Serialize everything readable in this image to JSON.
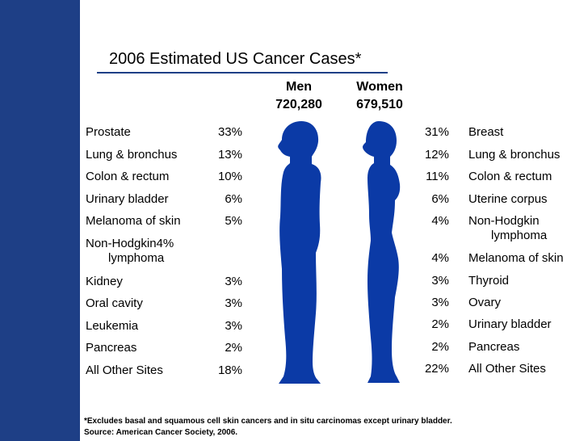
{
  "title": "2006 Estimated US Cancer Cases*",
  "colors": {
    "accent": "#1e3f86",
    "figure": "#0b3aa6"
  },
  "chart_data": {
    "type": "table",
    "columns": [
      "Men",
      "Women"
    ],
    "totals": {
      "men": "720,280",
      "women": "679,510"
    },
    "men": [
      {
        "site": "Prostate",
        "pct": "33%"
      },
      {
        "site": "Lung & bronchus",
        "pct": "13%"
      },
      {
        "site": "Colon & rectum",
        "pct": "10%"
      },
      {
        "site": "Urinary bladder",
        "pct": "6%"
      },
      {
        "site": "Melanoma of skin",
        "pct": "5%"
      },
      {
        "site": "Non-Hodgkin4%",
        "site2": "lymphoma",
        "pct": ""
      },
      {
        "site": "Kidney",
        "pct": "3%"
      },
      {
        "site": "Oral cavity",
        "pct": "3%"
      },
      {
        "site": "Leukemia",
        "pct": "3%"
      },
      {
        "site": "Pancreas",
        "pct": "2%"
      },
      {
        "site": "All Other Sites",
        "pct": "18%"
      }
    ],
    "women": [
      {
        "site": "Breast",
        "pct": "31%"
      },
      {
        "site": "Lung & bronchus",
        "pct": "12%"
      },
      {
        "site": "Colon & rectum",
        "pct": "11%"
      },
      {
        "site": "Uterine corpus",
        "pct": "6%"
      },
      {
        "site": "Non-Hodgkin",
        "site2": "lymphoma",
        "pct": "4%"
      },
      {
        "site": "Melanoma of skin",
        "pct": "4%"
      },
      {
        "site": "Thyroid",
        "pct": "3%"
      },
      {
        "site": "Ovary",
        "pct": "3%"
      },
      {
        "site": "Urinary bladder",
        "pct": "2%"
      },
      {
        "site": "Pancreas",
        "pct": "2%"
      },
      {
        "site": "All Other Sites",
        "pct": "22%"
      }
    ]
  },
  "footnote": {
    "line1": "*Excludes basal and squamous cell skin cancers and in situ carcinomas except urinary bladder.",
    "line2": "Source: American Cancer Society, 2006."
  }
}
